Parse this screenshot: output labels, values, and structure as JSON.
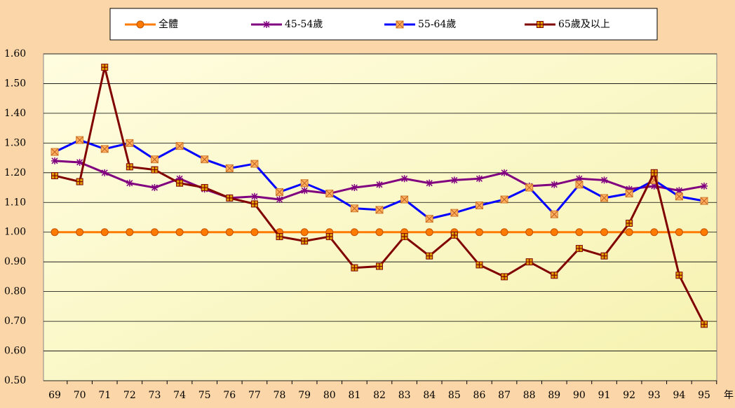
{
  "chart_data": {
    "type": "line",
    "x_label": "年",
    "categories": [
      "69",
      "70",
      "71",
      "72",
      "73",
      "74",
      "75",
      "76",
      "77",
      "78",
      "79",
      "80",
      "81",
      "82",
      "83",
      "84",
      "85",
      "86",
      "87",
      "88",
      "89",
      "90",
      "91",
      "92",
      "93",
      "94",
      "95"
    ],
    "series": [
      {
        "name": "全體",
        "color": "#ff7a00",
        "marker": "circle",
        "values": [
          1.0,
          1.0,
          1.0,
          1.0,
          1.0,
          1.0,
          1.0,
          1.0,
          1.0,
          1.0,
          1.0,
          1.0,
          1.0,
          1.0,
          1.0,
          1.0,
          1.0,
          1.0,
          1.0,
          1.0,
          1.0,
          1.0,
          1.0,
          1.0,
          1.0,
          1.0,
          1.0
        ]
      },
      {
        "name": "45-54歲",
        "color": "#800080",
        "marker": "star",
        "values": [
          1.24,
          1.235,
          1.2,
          1.165,
          1.15,
          1.18,
          1.145,
          1.115,
          1.12,
          1.11,
          1.14,
          1.13,
          1.15,
          1.16,
          1.18,
          1.165,
          1.175,
          1.18,
          1.2,
          1.155,
          1.16,
          1.18,
          1.175,
          1.145,
          1.155,
          1.14,
          1.155
        ]
      },
      {
        "name": "55-64歲",
        "color": "#0000ff",
        "marker": "xbox",
        "values": [
          1.27,
          1.31,
          1.28,
          1.3,
          1.245,
          1.29,
          1.245,
          1.215,
          1.23,
          1.135,
          1.165,
          1.13,
          1.08,
          1.075,
          1.11,
          1.045,
          1.065,
          1.09,
          1.11,
          1.15,
          1.06,
          1.16,
          1.115,
          1.13,
          1.175,
          1.12,
          1.105
        ]
      },
      {
        "name": "65歲及以上",
        "color": "#800000",
        "marker": "plusbox",
        "values": [
          1.19,
          1.17,
          1.555,
          1.22,
          1.21,
          1.165,
          1.15,
          1.115,
          1.095,
          0.985,
          0.97,
          0.985,
          0.88,
          0.885,
          0.985,
          0.92,
          0.99,
          0.89,
          0.85,
          0.9,
          0.855,
          0.945,
          0.92,
          1.03,
          1.2,
          0.855,
          0.69
        ]
      }
    ],
    "ylim": [
      0.5,
      1.6
    ],
    "yticks": [
      {
        "value": 0.5,
        "label": "0.50"
      },
      {
        "value": 0.6,
        "label": "0.60"
      },
      {
        "value": 0.7,
        "label": "0.70"
      },
      {
        "value": 0.8,
        "label": "0.80"
      },
      {
        "value": 0.9,
        "label": "0.90"
      },
      {
        "value": 1.0,
        "label": "1.00"
      },
      {
        "value": 1.1,
        "label": "1.10"
      },
      {
        "value": 1.2,
        "label": "1.20"
      },
      {
        "value": 1.3,
        "label": "1.30"
      },
      {
        "value": 1.4,
        "label": "1.40"
      },
      {
        "value": 1.5,
        "label": "1.50"
      },
      {
        "value": 1.6,
        "label": "1.60"
      }
    ],
    "grid": true
  }
}
